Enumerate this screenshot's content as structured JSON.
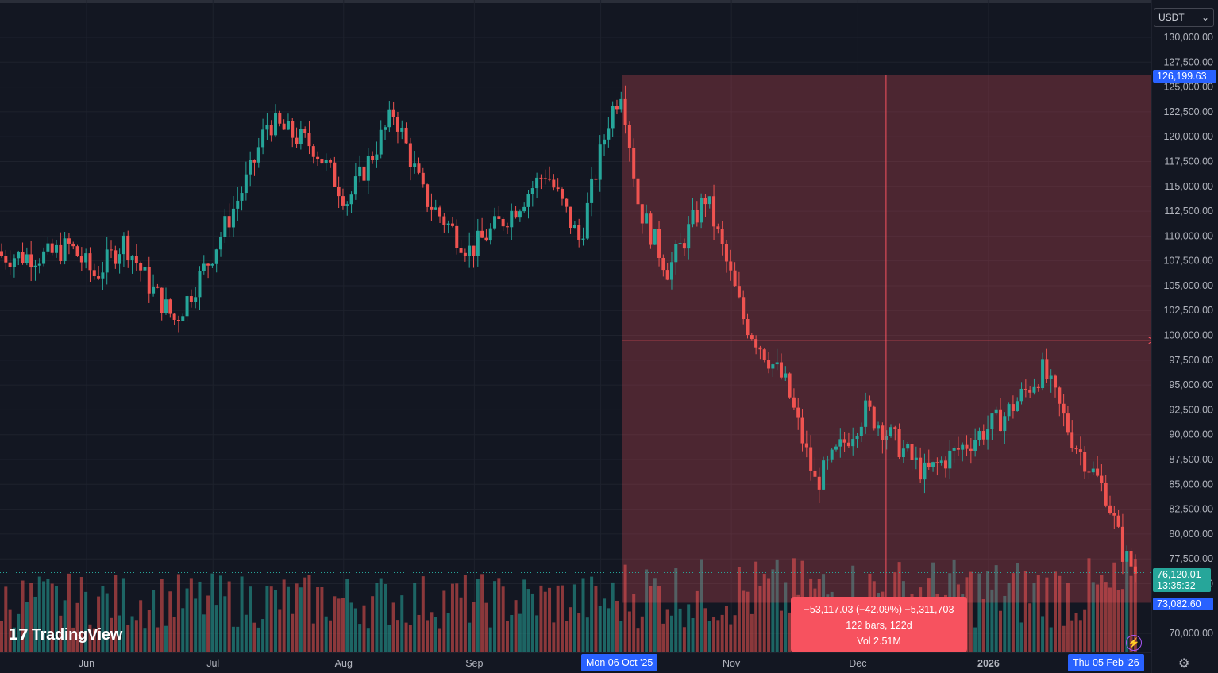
{
  "quote_currency": "USDT",
  "price_axis": {
    "ticks": [
      "130,000.00",
      "127,500.00",
      "125,000.00",
      "122,500.00",
      "120,000.00",
      "117,500.00",
      "115,000.00",
      "112,500.00",
      "110,000.00",
      "107,500.00",
      "105,000.00",
      "102,500.00",
      "100,000.00",
      "97,500.00",
      "95,000.00",
      "92,500.00",
      "90,000.00",
      "87,500.00",
      "85,000.00",
      "82,500.00",
      "80,000.00",
      "77,500.00",
      "75,000.00",
      "70,000.00"
    ]
  },
  "time_axis": {
    "labels": [
      "Jun",
      "Jul",
      "Aug",
      "Sep",
      "Nov",
      "Dec",
      "2026"
    ]
  },
  "badges": {
    "high": "126,199.63",
    "low": "73,082.60",
    "last_price": "76,120.01",
    "countdown": "13:35:32",
    "date_start": "Mon 06 Oct '25",
    "date_end": "Thu 05 Feb '26"
  },
  "measure": {
    "change": "−53,117.03 (−42.09%) −5,311,703",
    "bars": "122 bars, 122d",
    "volume": "Vol 2.51M"
  },
  "logo_text": "TradingView",
  "icons": {
    "logo": "tradingview-logo-icon",
    "bolt": "lightning-icon",
    "settings": "gear-icon",
    "dropdown": "chevron-down-icon"
  },
  "colors": {
    "background": "#131722",
    "up": "#26a69a",
    "down": "#ef5350",
    "accent": "#2962ff",
    "measure": "#f7525f"
  },
  "chart_data": {
    "type": "candlestick",
    "symbol_quote": "USDT",
    "interval": "1D",
    "ylim": [
      67500,
      131000
    ],
    "range_highlight": {
      "from": "2025-10-06",
      "to": "2026-02-05",
      "high": 126199.63,
      "low": 73082.6
    },
    "last_price": 76120.01,
    "monthly_path": [
      {
        "date": "2025-05-23",
        "price": 108000
      },
      {
        "date": "2025-05-28",
        "price": 109000
      },
      {
        "date": "2025-06-03",
        "price": 106000
      },
      {
        "date": "2025-06-10",
        "price": 109500
      },
      {
        "date": "2025-06-16",
        "price": 105000
      },
      {
        "date": "2025-06-22",
        "price": 101500
      },
      {
        "date": "2025-06-30",
        "price": 107500
      },
      {
        "date": "2025-07-10",
        "price": 116500
      },
      {
        "date": "2025-07-14",
        "price": 121500
      },
      {
        "date": "2025-07-25",
        "price": 119000
      },
      {
        "date": "2025-08-02",
        "price": 113500
      },
      {
        "date": "2025-08-13",
        "price": 122500
      },
      {
        "date": "2025-08-20",
        "price": 114000
      },
      {
        "date": "2025-08-31",
        "price": 108500
      },
      {
        "date": "2025-09-10",
        "price": 112500
      },
      {
        "date": "2025-09-18",
        "price": 116500
      },
      {
        "date": "2025-09-26",
        "price": 109500
      },
      {
        "date": "2025-10-03",
        "price": 122000
      },
      {
        "date": "2025-10-06",
        "price": 125000
      },
      {
        "date": "2025-10-10",
        "price": 113000
      },
      {
        "date": "2025-10-17",
        "price": 106500
      },
      {
        "date": "2025-10-26",
        "price": 114000
      },
      {
        "date": "2025-11-04",
        "price": 101500
      },
      {
        "date": "2025-11-14",
        "price": 95000
      },
      {
        "date": "2025-11-21",
        "price": 85000
      },
      {
        "date": "2025-12-03",
        "price": 92500
      },
      {
        "date": "2025-12-17",
        "price": 86000
      },
      {
        "date": "2026-01-05",
        "price": 92000
      },
      {
        "date": "2026-01-14",
        "price": 96500
      },
      {
        "date": "2026-01-21",
        "price": 89500
      },
      {
        "date": "2026-01-29",
        "price": 84000
      },
      {
        "date": "2026-02-02",
        "price": 78000
      },
      {
        "date": "2026-02-05",
        "price": 76120
      }
    ]
  }
}
